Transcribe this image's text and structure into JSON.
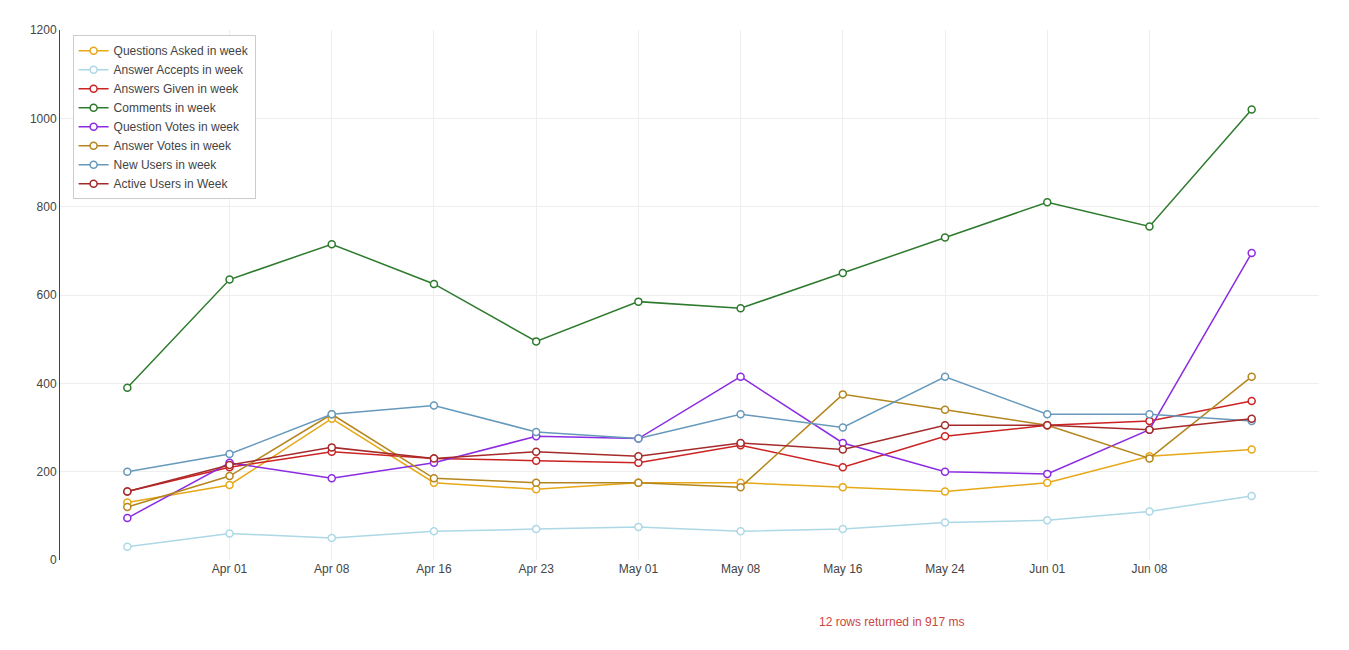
{
  "chart_data": {
    "type": "line",
    "categories": [
      null,
      "Apr 01",
      "Apr 08",
      "Apr 16",
      "Apr 23",
      "May 01",
      "May 08",
      "May 16",
      "May 24",
      "Jun 01",
      "Jun 08",
      null
    ],
    "series": [
      {
        "name": "Questions Asked in week",
        "color": "#e6a817",
        "values": [
          130,
          170,
          320,
          175,
          160,
          175,
          175,
          165,
          155,
          175,
          235,
          250
        ]
      },
      {
        "name": "Answer Accepts in week",
        "color": "#add8e6",
        "values": [
          30,
          60,
          50,
          65,
          70,
          75,
          65,
          70,
          85,
          90,
          110,
          145
        ]
      },
      {
        "name": "Answers Given in week",
        "color": "#cc2222",
        "values": [
          155,
          210,
          245,
          230,
          225,
          220,
          260,
          210,
          280,
          305,
          315,
          360
        ]
      },
      {
        "name": "Comments in week",
        "color": "#2d7a2d",
        "values": [
          390,
          635,
          715,
          625,
          495,
          585,
          570,
          650,
          730,
          810,
          755,
          1020
        ]
      },
      {
        "name": "Question Votes in week",
        "color": "#8b2be2",
        "values": [
          95,
          220,
          185,
          220,
          280,
          275,
          415,
          265,
          200,
          195,
          295,
          695
        ]
      },
      {
        "name": "Answer Votes in week",
        "color": "#b5861e",
        "values": [
          120,
          190,
          330,
          185,
          175,
          175,
          165,
          375,
          340,
          305,
          230,
          415
        ]
      },
      {
        "name": "New Users in week",
        "color": "#6699bb",
        "values": [
          200,
          240,
          330,
          350,
          290,
          275,
          330,
          300,
          415,
          330,
          330,
          315
        ]
      },
      {
        "name": "Active Users in Week",
        "color": "#a52a2a",
        "values": [
          155,
          215,
          255,
          230,
          245,
          235,
          265,
          250,
          305,
          305,
          295,
          320
        ]
      }
    ],
    "ylim": [
      0,
      1200
    ],
    "yticks": [
      0,
      200,
      400,
      600,
      800,
      1000,
      1200
    ],
    "grid": true,
    "legend": "upper left",
    "marker": "circle",
    "annotations": [
      "12 rows returned in 917 ms"
    ]
  }
}
